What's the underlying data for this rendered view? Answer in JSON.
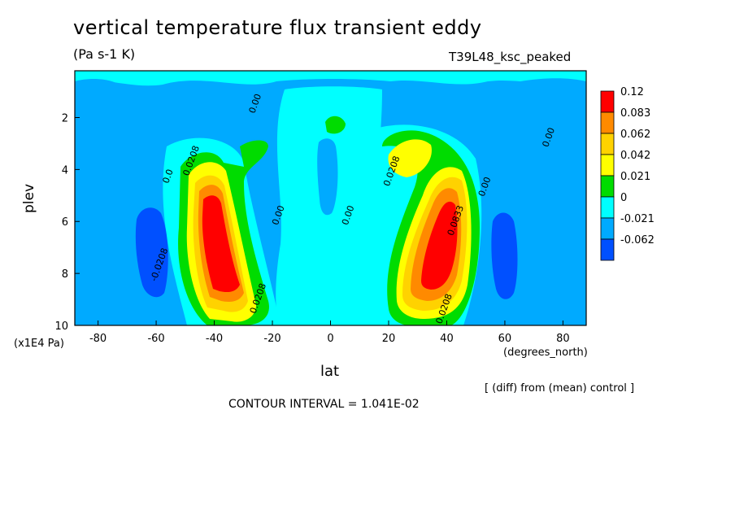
{
  "chart_data": {
    "type": "contour",
    "title": "vertical temperature flux transient eddy",
    "subtitle": "(Pa s-1 K)",
    "experiment": "T39L48_ksc_peaked",
    "xlabel": "lat",
    "ylabel": "plev",
    "x_unit": "(degrees_north)",
    "y_unit": "(x1E4 Pa)",
    "xlim": [
      -88,
      88
    ],
    "ylim": [
      0.2,
      10
    ],
    "y_inverted": true,
    "xticks": [
      -80,
      -60,
      -40,
      -20,
      0,
      20,
      40,
      60,
      80
    ],
    "yticks": [
      2,
      4,
      6,
      8,
      10
    ],
    "note": "[ (diff) from (mean) control ]",
    "contour_interval_text": "CONTOUR INTERVAL = 1.041E-02",
    "colorbar": {
      "levels": [
        "0.12",
        "0.083",
        "0.062",
        "0.042",
        "0.021",
        "0",
        "-0.021",
        "-0.062"
      ],
      "colors": [
        "#ff0000",
        "#ff8a00",
        "#ffd200",
        "#ffff00",
        "#00dc00",
        "#00ffff",
        "#00aaff",
        "#0050ff"
      ]
    },
    "contour_labels": [
      {
        "text": "0.00",
        "lon": -25,
        "plev": 1.5
      },
      {
        "text": "0.0208",
        "lon": -47,
        "plev": 3.7
      },
      {
        "text": "0.0",
        "lon": -55,
        "plev": 4.3
      },
      {
        "text": "-0.0208",
        "lon": -58,
        "plev": 7.7
      },
      {
        "text": "0.00",
        "lon": -17,
        "plev": 5.8
      },
      {
        "text": "0.0208",
        "lon": -24,
        "plev": 9.0
      },
      {
        "text": "0.0208",
        "lon": 22,
        "plev": 4.1
      },
      {
        "text": "0.00",
        "lon": 7,
        "plev": 5.8
      },
      {
        "text": "0.0833",
        "lon": 44,
        "plev": 6.0
      },
      {
        "text": "0.00",
        "lon": 54,
        "plev": 4.7
      },
      {
        "text": "0.0208",
        "lon": 40,
        "plev": 9.4
      },
      {
        "text": "0.00",
        "lon": 76,
        "plev": 2.8
      }
    ]
  }
}
